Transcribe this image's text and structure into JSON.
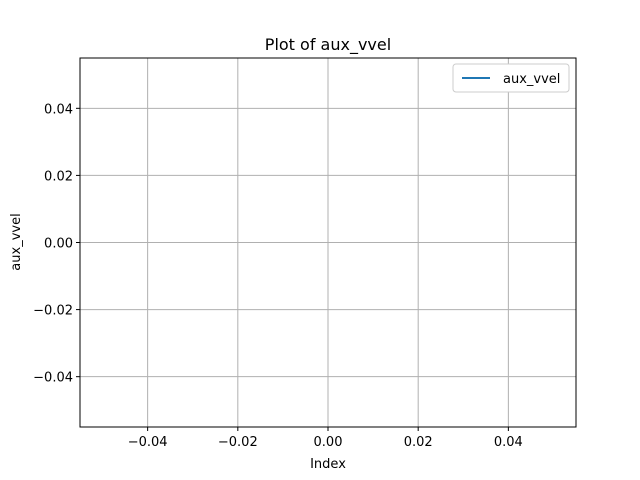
{
  "chart_data": {
    "type": "line",
    "title": "Plot of aux_vvel",
    "xlabel": "Index",
    "ylabel": "aux_vvel",
    "xlim": [
      -0.055,
      0.055
    ],
    "ylim": [
      -0.055,
      0.055
    ],
    "xticks": [
      -0.04,
      -0.02,
      0.0,
      0.02,
      0.04
    ],
    "yticks": [
      -0.04,
      -0.02,
      0.0,
      0.02,
      0.04
    ],
    "xtick_labels": [
      "−0.04",
      "−0.02",
      "0.00",
      "0.02",
      "0.04"
    ],
    "ytick_labels": [
      "−0.04",
      "−0.02",
      "0.00",
      "0.02",
      "0.04"
    ],
    "grid": true,
    "legend_position": "top-right",
    "series": [
      {
        "name": "aux_vvel",
        "color": "#1f77b4",
        "x": [],
        "y": []
      }
    ]
  }
}
